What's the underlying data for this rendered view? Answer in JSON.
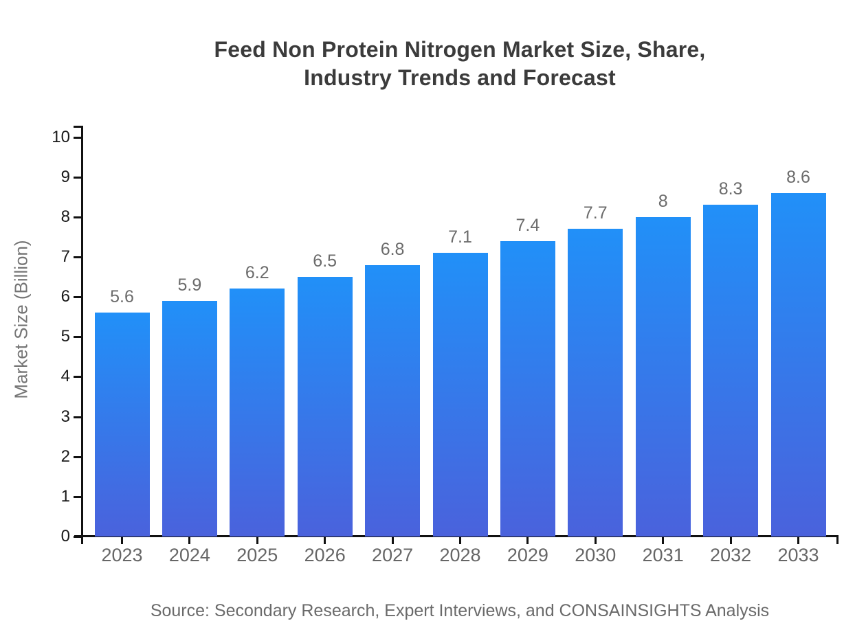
{
  "header": {
    "title_line1": "Feed Non Protein Nitrogen Market Size, Share,",
    "title_line2": "Industry Trends and Forecast"
  },
  "footer": {
    "source": "Source: Secondary Research, Expert Interviews, and CONSAINSIGHTS Analysis"
  },
  "chart_data": {
    "type": "bar",
    "title": "Feed Non Protein Nitrogen Market Size, Share, Industry Trends and Forecast",
    "categories": [
      "2023",
      "2024",
      "2025",
      "2026",
      "2027",
      "2028",
      "2029",
      "2030",
      "2031",
      "2032",
      "2033"
    ],
    "values": [
      5.6,
      5.9,
      6.2,
      6.5,
      6.8,
      7.1,
      7.4,
      7.7,
      8,
      8.3,
      8.6
    ],
    "value_labels": [
      "5.6",
      "5.9",
      "6.2",
      "6.5",
      "6.8",
      "7.1",
      "7.4",
      "7.7",
      "8",
      "8.3",
      "8.6"
    ],
    "xlabel": "",
    "ylabel": "Market Size (Billion)",
    "ylim": [
      0,
      10
    ],
    "ytick_step": 1,
    "yticks": [
      "0",
      "1",
      "2",
      "3",
      "4",
      "5",
      "6",
      "7",
      "8",
      "9",
      "10"
    ],
    "grid": false,
    "legend": null,
    "bar_gradient": {
      "top": "#2190F8",
      "bottom": "#4A62DC"
    },
    "axis_color": "#111111"
  }
}
